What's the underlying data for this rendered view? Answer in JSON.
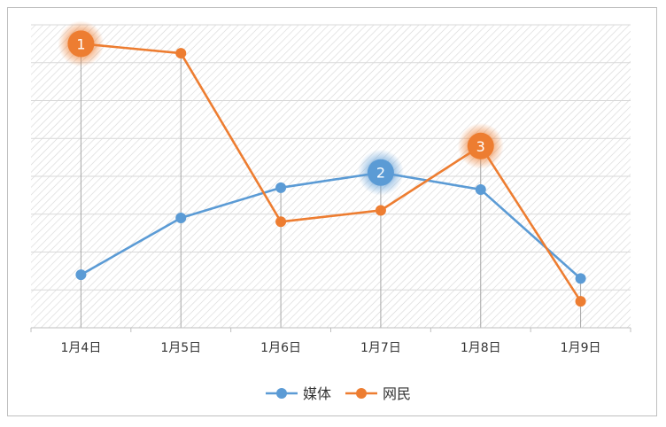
{
  "chart_data": {
    "type": "line",
    "categories": [
      "1月4日",
      "1月5日",
      "1月6日",
      "1月7日",
      "1月8日",
      "1月9日"
    ],
    "series": [
      {
        "name": "媒体",
        "color": "#5B9BD5",
        "values": [
          14,
          29,
          37,
          41,
          36.5,
          13
        ]
      },
      {
        "name": "网民",
        "color": "#ED7D31",
        "values": [
          75,
          72.5,
          28,
          31,
          48,
          7
        ]
      }
    ],
    "ylim": [
      0,
      80
    ],
    "y_gridlines": 8,
    "y_tick_labels": false,
    "grid": true,
    "background": "diagonal-hatch",
    "drop_lines": true,
    "legend": {
      "position": "bottom",
      "marker": "line-with-circle"
    },
    "callouts": [
      {
        "label": "1",
        "series": 1,
        "index": 0,
        "color": "#ED7D31"
      },
      {
        "label": "2",
        "series": 0,
        "index": 3,
        "color": "#5B9BD5"
      },
      {
        "label": "3",
        "series": 1,
        "index": 4,
        "color": "#ED7D31"
      }
    ]
  }
}
